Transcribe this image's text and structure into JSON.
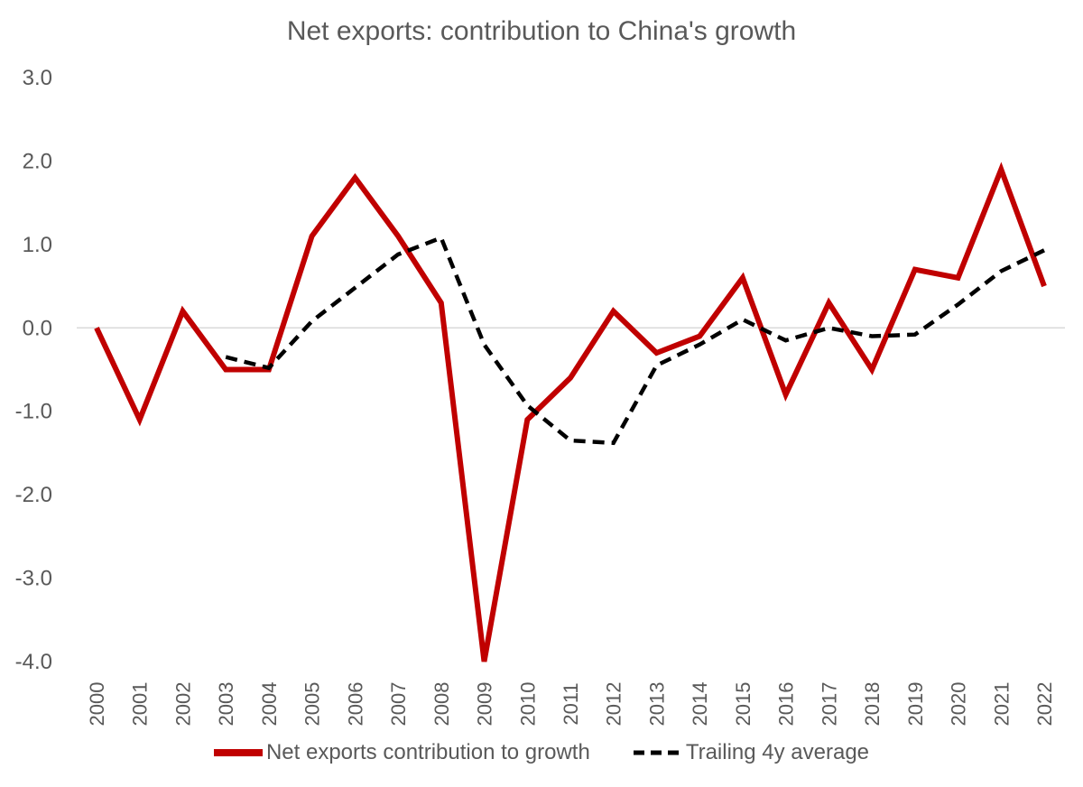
{
  "chart_data": {
    "type": "line",
    "title": "Net exports: contribution to China's growth",
    "xlabel": "",
    "ylabel": "",
    "ylim": [
      -4.0,
      3.0
    ],
    "yticks": [
      "3.0",
      "2.0",
      "1.0",
      "0.0",
      "-1.0",
      "-2.0",
      "-3.0",
      "-4.0"
    ],
    "ytick_values": [
      3,
      2,
      1,
      0,
      -1,
      -2,
      -3,
      -4
    ],
    "categories": [
      "2000",
      "2001",
      "2002",
      "2003",
      "2004",
      "2005",
      "2006",
      "2007",
      "2008",
      "2009",
      "2010",
      "2011",
      "2012",
      "2013",
      "2014",
      "2015",
      "2016",
      "2017",
      "2018",
      "2019",
      "2020",
      "2021",
      "2022"
    ],
    "grid": false,
    "zero_line": true,
    "legend_position": "bottom",
    "series": [
      {
        "name": "Net exports contribution to growth",
        "color": "#C00000",
        "style": "solid",
        "values": [
          0.0,
          -1.1,
          0.2,
          -0.5,
          -0.5,
          1.1,
          1.8,
          1.1,
          0.3,
          -4.0,
          -1.1,
          -0.6,
          0.2,
          -0.3,
          -0.1,
          0.6,
          -0.8,
          0.3,
          -0.5,
          0.7,
          0.6,
          1.9,
          0.5
        ]
      },
      {
        "name": "Trailing 4y average",
        "color": "#000000",
        "style": "dashed",
        "values": [
          null,
          null,
          null,
          -0.35,
          -0.48,
          0.08,
          0.48,
          0.88,
          1.08,
          -0.2,
          -0.93,
          -1.35,
          -1.38,
          -0.45,
          -0.2,
          0.1,
          -0.15,
          0.0,
          -0.1,
          -0.08,
          0.28,
          0.68,
          0.93
        ]
      }
    ]
  }
}
